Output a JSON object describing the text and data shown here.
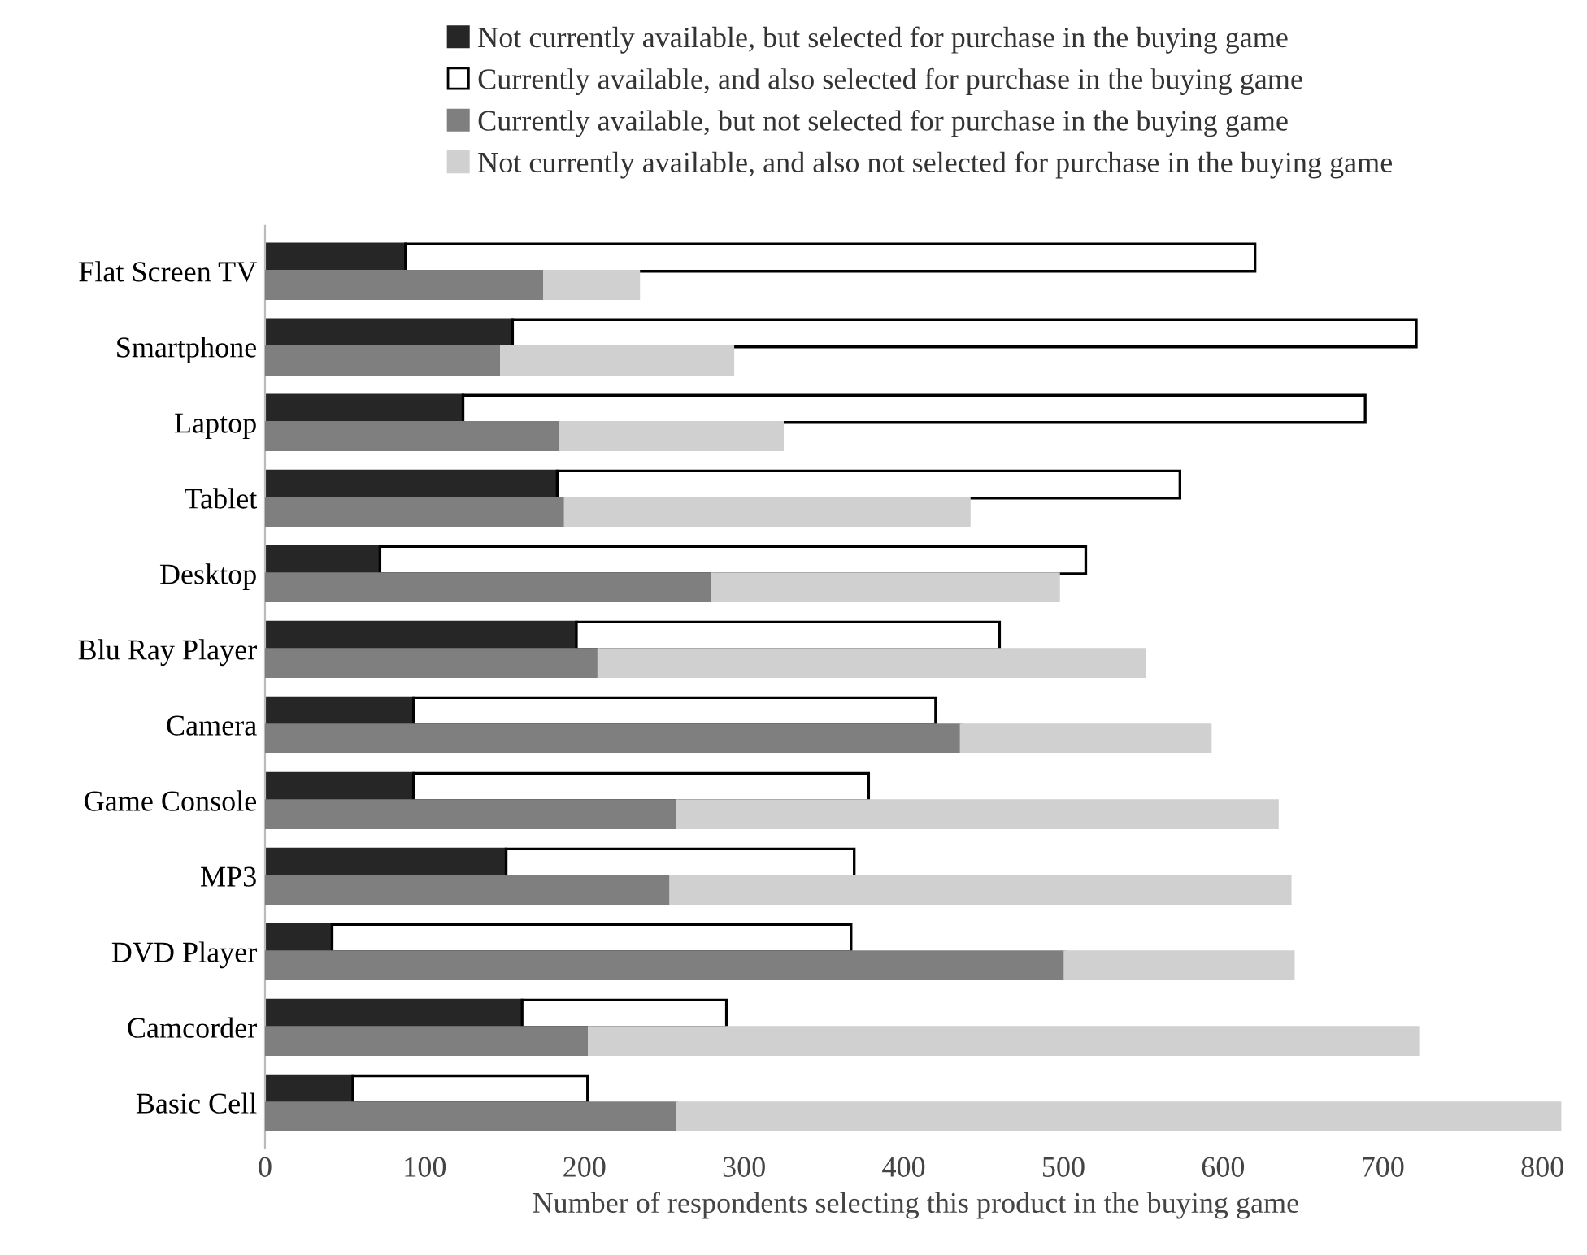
{
  "chart_data": [
    {
      "type": "bar",
      "orientation": "horizontal",
      "stacked": true,
      "xlabel": "Number of respondents selecting this product in the buying game",
      "categories": [
        "Flat Screen TV",
        "Smartphone",
        "Laptop",
        "Tablet",
        "Desktop",
        "Blu Ray Player",
        "Camera",
        "Game Console",
        "MP3",
        "DVD Player",
        "Camcorder",
        "Basic Cell"
      ],
      "series": [
        {
          "name": "Not currently available, but selected for purchase in the buying game",
          "color": "#262626",
          "values": [
            88,
            155,
            124,
            183,
            72,
            195,
            93,
            93,
            151,
            42,
            161,
            55
          ]
        },
        {
          "name": "Currently available, and also selected for purchase in the buying game",
          "color": "#ffffff",
          "values": [
            532,
            566,
            565,
            390,
            442,
            265,
            327,
            285,
            218,
            325,
            128,
            147
          ]
        }
      ],
      "xlim": [
        0,
        815
      ],
      "xticks": [
        0,
        100,
        200,
        300,
        400,
        500,
        600,
        700,
        800
      ],
      "legend": "top"
    },
    {
      "type": "bar",
      "orientation": "horizontal",
      "stacked": true,
      "categories": [
        null,
        null,
        null,
        null,
        null,
        null,
        null,
        null,
        null,
        null,
        null,
        null
      ],
      "series": [
        {
          "name": "Currently available, but not selected for purchase in the buying game",
          "color": "#7f7f7f",
          "values": [
            175,
            148,
            185,
            188,
            280,
            209,
            436,
            258,
            254,
            501,
            203,
            258
          ]
        },
        {
          "name": "Not currently available, and also not selected for purchase in the buying game",
          "color": "#d0d0d0",
          "values": [
            59,
            145,
            139,
            253,
            217,
            342,
            156,
            376,
            388,
            143,
            519,
            553
          ]
        }
      ],
      "xlim": [
        0,
        815
      ],
      "xticks": [
        0,
        100,
        200,
        300,
        400,
        500,
        600,
        700,
        800
      ],
      "legend": "top",
      "tick_labels": false
    }
  ]
}
